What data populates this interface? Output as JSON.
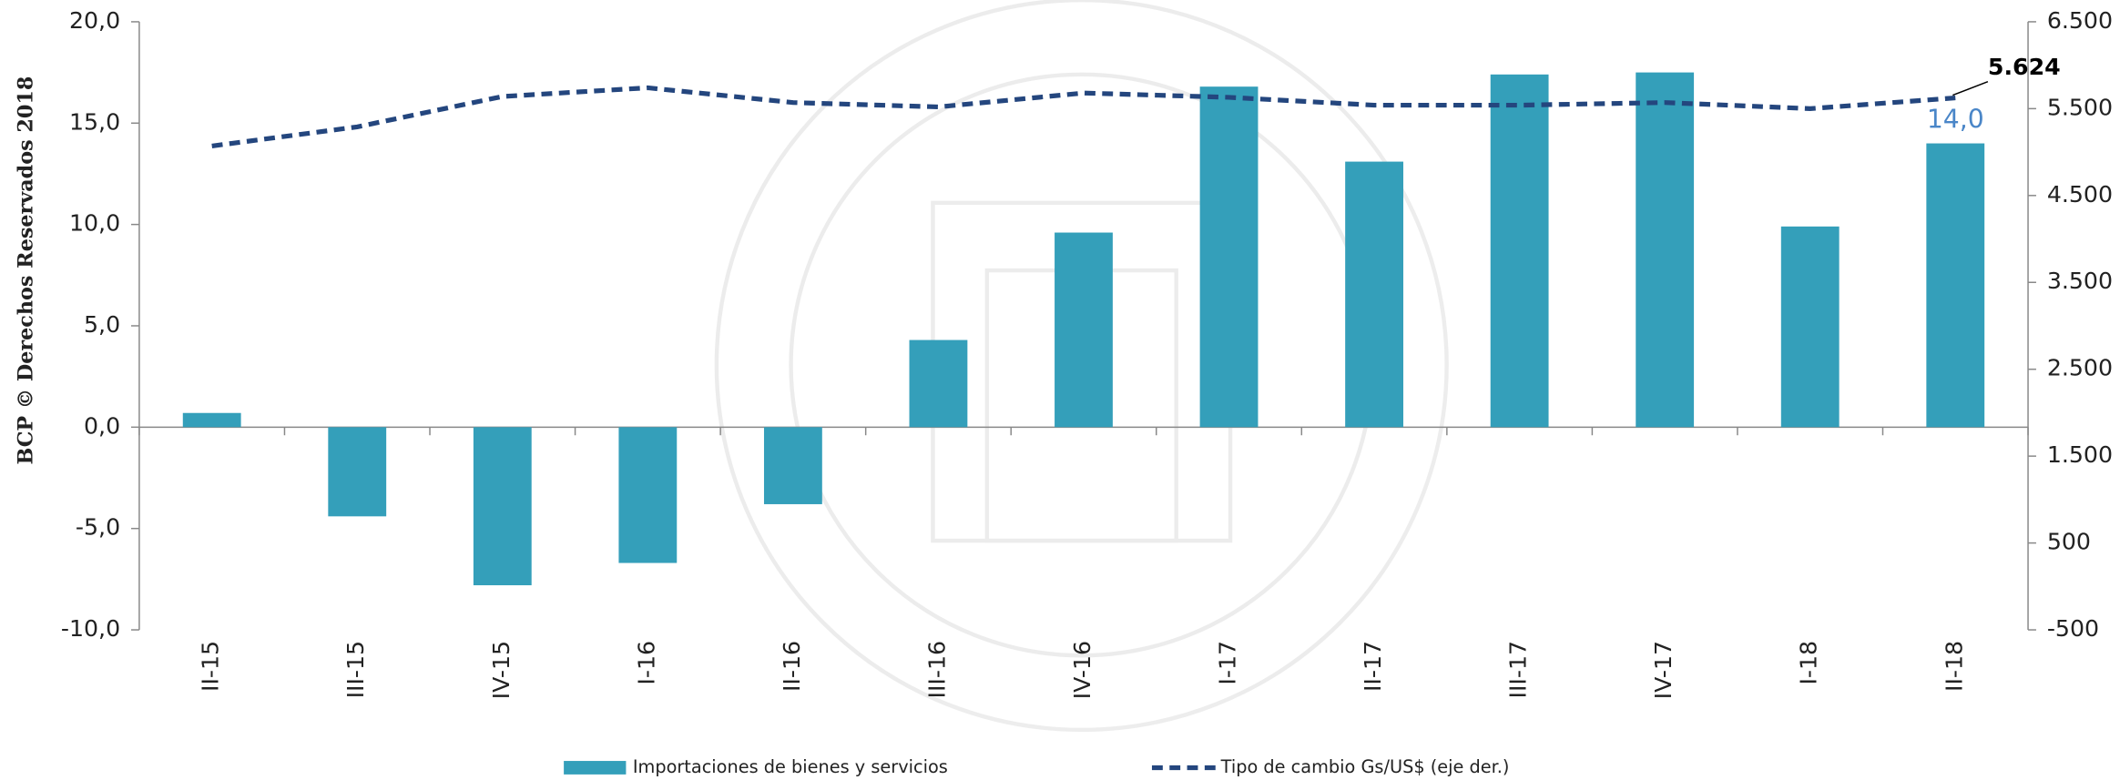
{
  "chart_data": {
    "type": "bar",
    "side_note": "BCP © Derechos Reservados 2018",
    "categories": [
      "II-15",
      "III-15",
      "IV-15",
      "I-16",
      "II-16",
      "III-16",
      "IV-16",
      "I-17",
      "II-17",
      "III-17",
      "IV-17",
      "I-18",
      "II-18"
    ],
    "series": [
      {
        "name": "Importaciones de bienes y servicios",
        "type": "bar",
        "color": "#349fba",
        "axis": "y",
        "values": [
          0.7,
          -4.4,
          -7.8,
          -6.7,
          -3.8,
          4.3,
          9.6,
          16.8,
          13.1,
          17.4,
          17.5,
          9.9,
          14.0
        ],
        "value_labels": [
          null,
          null,
          null,
          null,
          null,
          null,
          null,
          null,
          null,
          null,
          null,
          null,
          "14,0"
        ],
        "label_color": "#4a86c8"
      },
      {
        "name": "Tipo de cambio Gs/US$ (eje der.)",
        "type": "line",
        "color": "#24467e",
        "axis": "y2",
        "dashed": true,
        "values": [
          5070,
          5290,
          5640,
          5740,
          5570,
          5520,
          5680,
          5630,
          5540,
          5540,
          5570,
          5500,
          5624
        ],
        "value_labels": [
          null,
          null,
          null,
          null,
          null,
          null,
          null,
          null,
          null,
          null,
          null,
          null,
          "5.624"
        ],
        "label_color": "#000000"
      }
    ],
    "ylim": [
      -10,
      20
    ],
    "yticks": [
      {
        "value": -10,
        "label": "-10,0"
      },
      {
        "value": -5,
        "label": "-5,0"
      },
      {
        "value": 0,
        "label": "0,0"
      },
      {
        "value": 5,
        "label": "5,0"
      },
      {
        "value": 10,
        "label": "10,0"
      },
      {
        "value": 15,
        "label": "15,0"
      },
      {
        "value": 20,
        "label": "20,0"
      }
    ],
    "y2lim": [
      -500,
      6500
    ],
    "y2ticks": [
      -500,
      500,
      {
        "value": 1500,
        "label": "1.500"
      },
      {
        "value": 2500,
        "label": "2.500"
      },
      {
        "value": 3500,
        "label": "3.500"
      },
      {
        "value": 4500,
        "label": "4.500"
      },
      {
        "value": 5500,
        "label": "5.500"
      },
      {
        "value": 6500,
        "label": "6.500"
      }
    ],
    "grid": false
  }
}
